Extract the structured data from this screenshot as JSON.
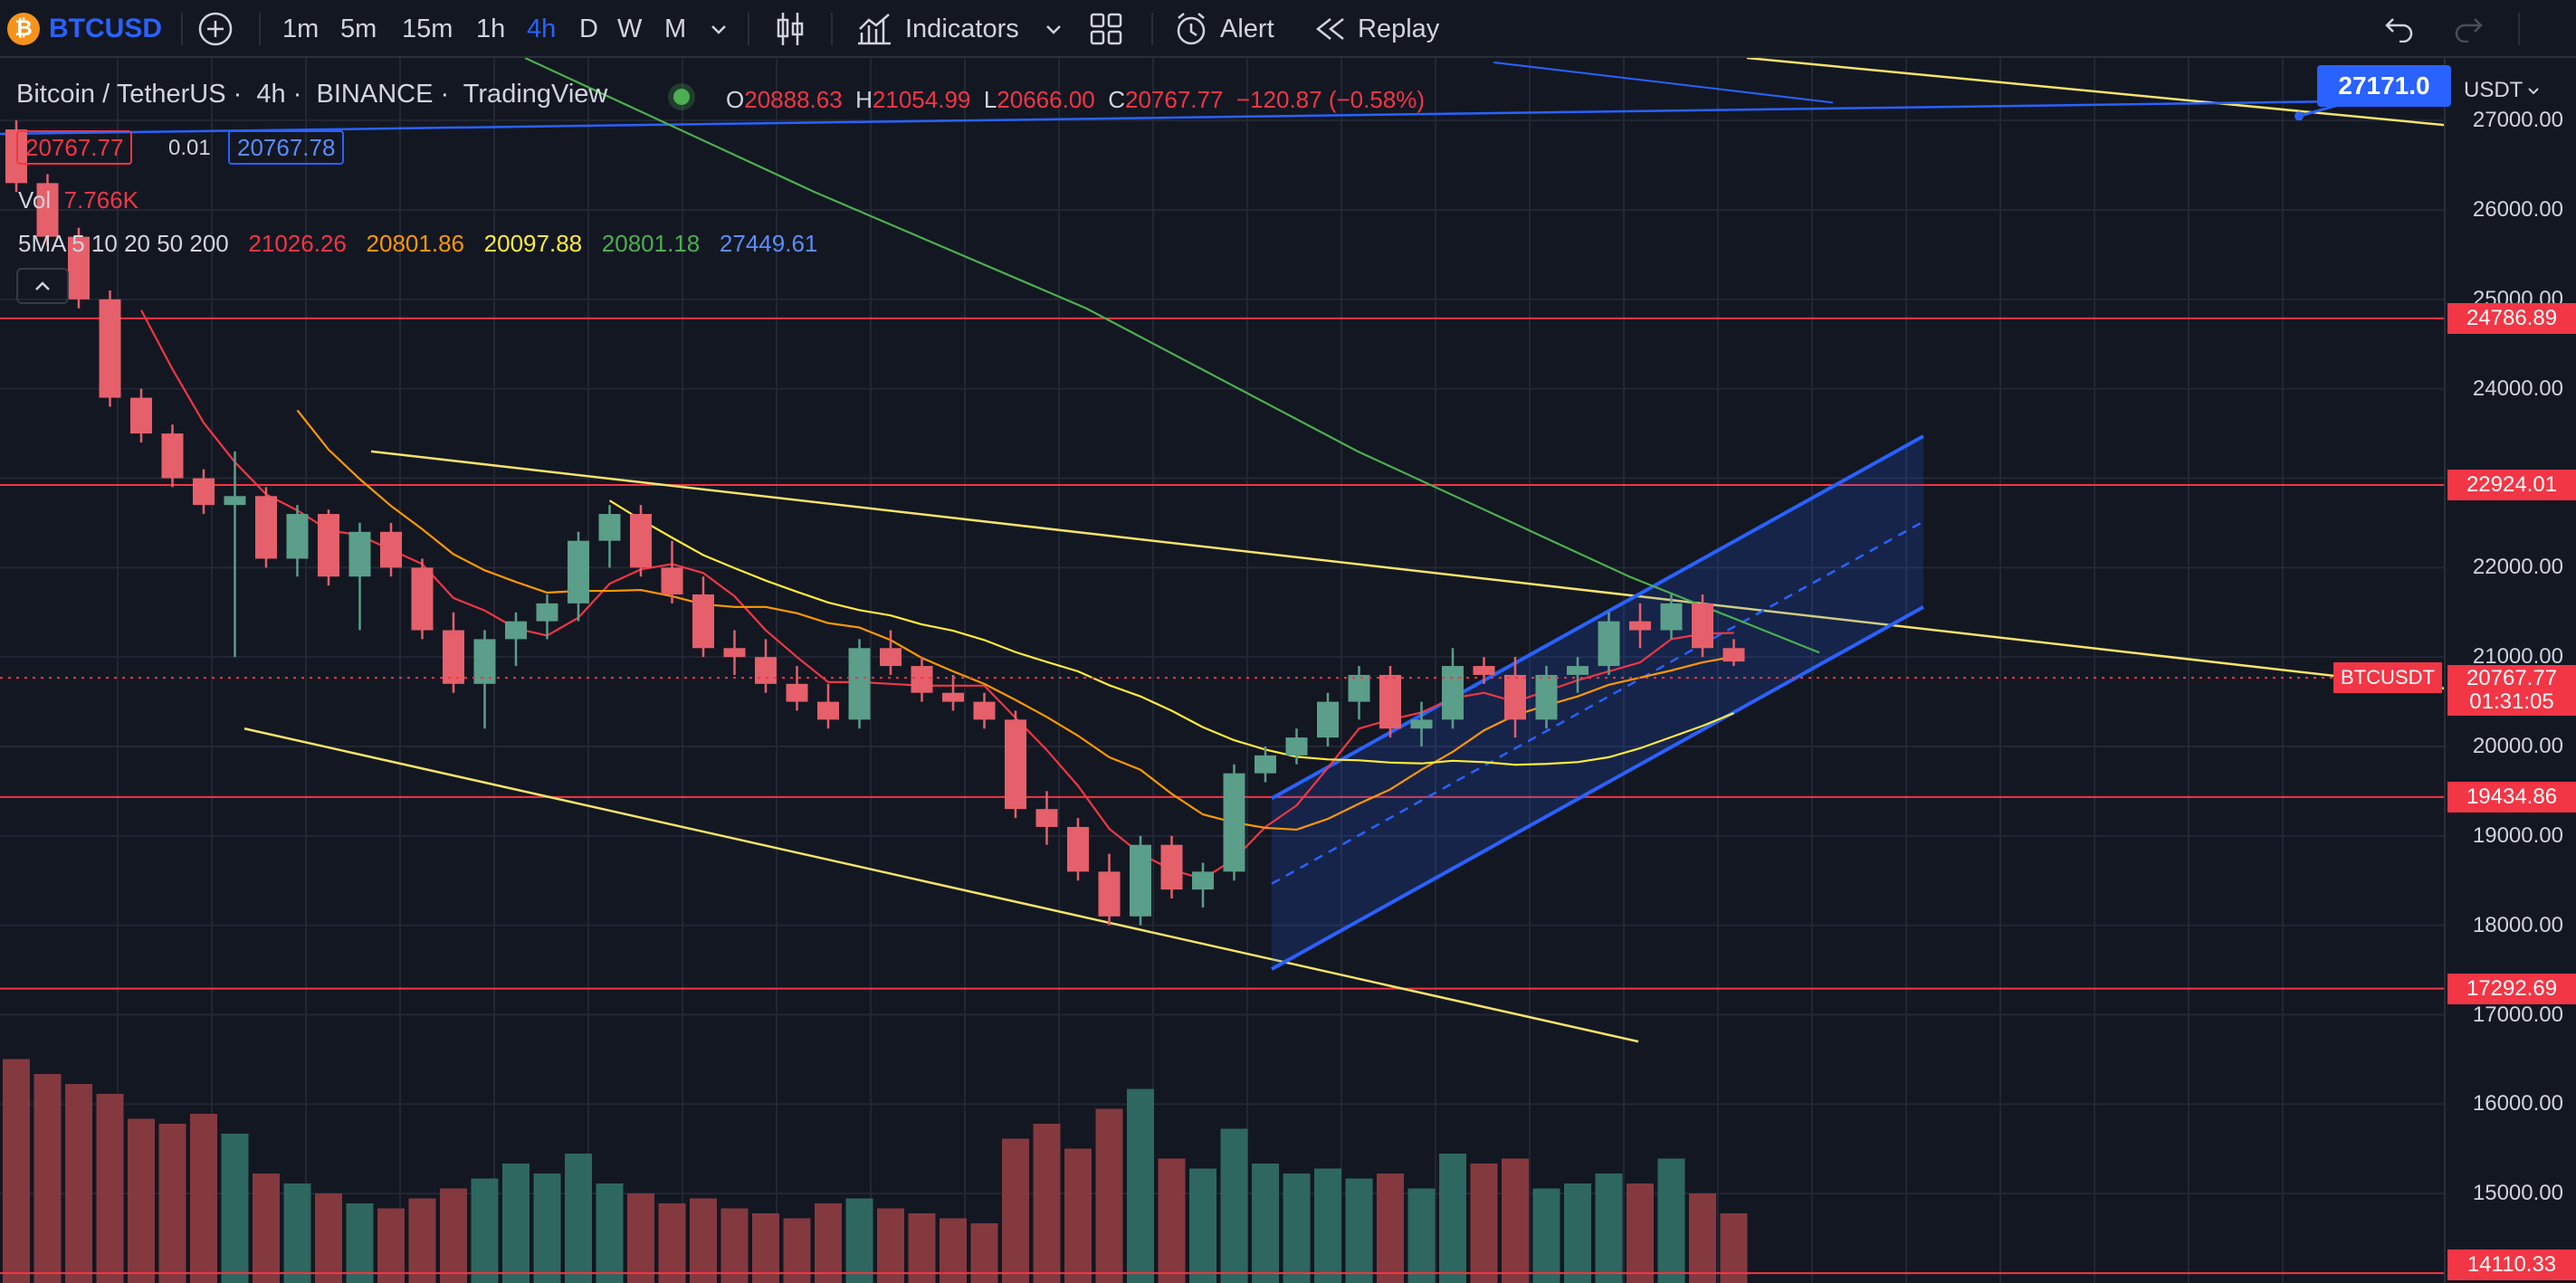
{
  "toolbar": {
    "symbol": "BTCUSD",
    "timeframes": [
      {
        "label": "1m",
        "active": false
      },
      {
        "label": "5m",
        "active": false
      },
      {
        "label": "15m",
        "active": false
      },
      {
        "label": "1h",
        "active": false
      },
      {
        "label": "4h",
        "active": true
      },
      {
        "label": "D",
        "active": false
      },
      {
        "label": "W",
        "active": false
      },
      {
        "label": "M",
        "active": false
      }
    ],
    "indicators_label": "Indicators",
    "alert_label": "Alert",
    "replay_label": "Replay",
    "icons": [
      "add-symbol-icon",
      "chevron-down-icon",
      "candles-icon",
      "indicators-icon",
      "layouts-icon",
      "alert-icon",
      "replay-icon",
      "undo-icon",
      "redo-icon"
    ]
  },
  "legend": {
    "pair": "Bitcoin / TetherUS",
    "interval": "4h",
    "exchange": "BINANCE",
    "source": "TradingView",
    "open_label": "O",
    "open": "20888.63",
    "high_label": "H",
    "high": "21054.99",
    "low_label": "L",
    "low": "20666.00",
    "close_label": "C",
    "close": "20767.77",
    "change": "−120.87 (−0.58%)",
    "bid": "20767.77",
    "spread": "0.01",
    "ask": "20767.78",
    "vol_label": "Vol",
    "vol": "7.766K",
    "ma_label": "5MA 5 10 20 50 200",
    "ma_values": [
      {
        "value": "21026.26",
        "color": "#f23645"
      },
      {
        "value": "20801.86",
        "color": "#ff9800"
      },
      {
        "value": "20097.88",
        "color": "#ffeb3b"
      },
      {
        "value": "20801.18",
        "color": "#4caf50"
      },
      {
        "value": "27449.61",
        "color": "#2962ff"
      }
    ]
  },
  "axis": {
    "currency": "USDT",
    "ticks": [
      "27000.00",
      "26000.00",
      "25000.00",
      "24000.00",
      "23000.00",
      "22000.00",
      "21000.00",
      "20000.00",
      "19000.00",
      "18000.00",
      "17000.00",
      "16000.00",
      "15000.00"
    ],
    "tick_values": [
      27000,
      26000,
      25000,
      24000,
      23000,
      22000,
      21000,
      20000,
      19000,
      18000,
      17000,
      16000,
      15000
    ],
    "levels": [
      {
        "label": "24786.89",
        "value": 24786.89
      },
      {
        "label": "22924.01",
        "value": 22924.01
      },
      {
        "label": "19434.86",
        "value": 19434.86
      },
      {
        "label": "17292.69",
        "value": 17292.69
      },
      {
        "label": "14110.33",
        "value": 14110.33
      }
    ],
    "last_price": "20767.77",
    "countdown": "01:31:05",
    "symbol_tag": "BTCUSDT",
    "callout": "27171.0"
  },
  "colors": {
    "up": "#5b9e8a",
    "down": "#e5606a",
    "level": "#f23645",
    "channel": "#2962ff",
    "yellow": "#f5e36b",
    "green": "#4caf50",
    "orange": "#ff9800"
  },
  "chart_data": {
    "type": "candlestick",
    "interval": "4h",
    "ylim": [
      14000,
      27700
    ],
    "candles": [
      [
        26900,
        27000,
        26200,
        26300,
        4500
      ],
      [
        26300,
        26400,
        25600,
        25700,
        4200
      ],
      [
        25700,
        25800,
        24900,
        25000,
        4000
      ],
      [
        25000,
        25100,
        23800,
        23900,
        3800
      ],
      [
        23900,
        24000,
        23400,
        23500,
        3300
      ],
      [
        23500,
        23600,
        22900,
        23000,
        3200
      ],
      [
        23000,
        23100,
        22600,
        22700,
        3400
      ],
      [
        22700,
        23300,
        21000,
        22800,
        3000
      ],
      [
        22800,
        22900,
        22000,
        22100,
        2200
      ],
      [
        22100,
        22700,
        21900,
        22600,
        2000
      ],
      [
        22600,
        22650,
        21800,
        21900,
        1800
      ],
      [
        21900,
        22500,
        21300,
        22400,
        1600
      ],
      [
        22400,
        22500,
        21900,
        22000,
        1500
      ],
      [
        22000,
        22100,
        21200,
        21300,
        1700
      ],
      [
        21300,
        21500,
        20600,
        20700,
        1900
      ],
      [
        20700,
        21300,
        20200,
        21200,
        2100
      ],
      [
        21200,
        21500,
        20900,
        21400,
        2400
      ],
      [
        21400,
        21700,
        21200,
        21600,
        2200
      ],
      [
        21600,
        22400,
        21400,
        22300,
        2600
      ],
      [
        22300,
        22700,
        22000,
        22600,
        2000
      ],
      [
        22600,
        22700,
        21900,
        22000,
        1800
      ],
      [
        22000,
        22300,
        21600,
        21700,
        1600
      ],
      [
        21700,
        21900,
        21000,
        21100,
        1700
      ],
      [
        21100,
        21300,
        20800,
        21000,
        1500
      ],
      [
        21000,
        21200,
        20600,
        20700,
        1400
      ],
      [
        20700,
        20900,
        20400,
        20500,
        1300
      ],
      [
        20500,
        20700,
        20200,
        20300,
        1600
      ],
      [
        20300,
        21200,
        20200,
        21100,
        1700
      ],
      [
        21100,
        21300,
        20800,
        20900,
        1500
      ],
      [
        20900,
        21000,
        20500,
        20600,
        1400
      ],
      [
        20600,
        20800,
        20400,
        20500,
        1300
      ],
      [
        20500,
        20600,
        20200,
        20300,
        1200
      ],
      [
        20300,
        20400,
        19200,
        19300,
        2900
      ],
      [
        19300,
        19500,
        18900,
        19100,
        3200
      ],
      [
        19100,
        19200,
        18500,
        18600,
        2700
      ],
      [
        18600,
        18800,
        18000,
        18100,
        3500
      ],
      [
        18100,
        19000,
        18000,
        18900,
        3900
      ],
      [
        18900,
        19000,
        18300,
        18400,
        2500
      ],
      [
        18400,
        18700,
        18200,
        18600,
        2300
      ],
      [
        18600,
        19800,
        18500,
        19700,
        3100
      ],
      [
        19700,
        20000,
        19600,
        19900,
        2400
      ],
      [
        19900,
        20200,
        19800,
        20100,
        2200
      ],
      [
        20100,
        20600,
        20000,
        20500,
        2300
      ],
      [
        20500,
        20900,
        20300,
        20800,
        2100
      ],
      [
        20800,
        20900,
        20100,
        20200,
        2200
      ],
      [
        20200,
        20500,
        20000,
        20300,
        1900
      ],
      [
        20300,
        21100,
        20200,
        20900,
        2600
      ],
      [
        20900,
        21000,
        20700,
        20800,
        2400
      ],
      [
        20800,
        21000,
        20100,
        20300,
        2500
      ],
      [
        20300,
        20900,
        20200,
        20800,
        1900
      ],
      [
        20800,
        21000,
        20600,
        20900,
        2000
      ],
      [
        20900,
        21500,
        20800,
        21400,
        2200
      ],
      [
        21400,
        21600,
        21100,
        21300,
        2000
      ],
      [
        21300,
        21700,
        21200,
        21600,
        2500
      ],
      [
        21600,
        21700,
        21000,
        21100,
        1800
      ],
      [
        21100,
        21200,
        20900,
        20950,
        1400
      ]
    ]
  }
}
